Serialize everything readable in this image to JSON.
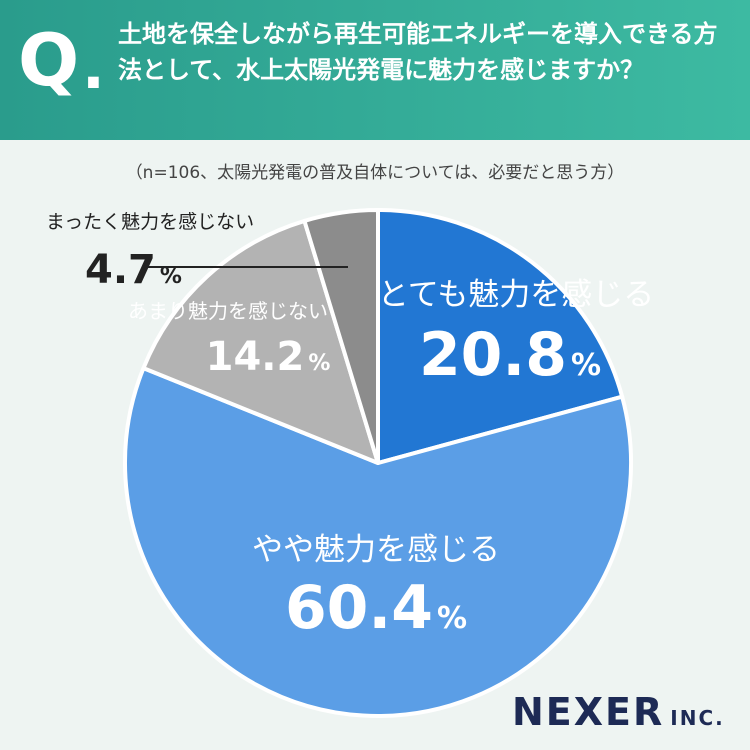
{
  "header": {
    "q_letter": "Q",
    "q_dot": ".",
    "question": "土地を保全しながら再生可能エネルギーを導入できる方法として、水上太陽光発電に魅力を感じますか？"
  },
  "note": "（n=106、太陽光発電の普及自体については、必要だと思う方）",
  "brand": {
    "main": "NEXER",
    "sub": "INC."
  },
  "colors": {
    "header": "#2a9c8c",
    "slice_very": "#2277d3",
    "slice_somewhat": "#5b9ee6",
    "slice_not_much": "#b3b3b3",
    "slice_not_at_all": "#8c8c8c",
    "leader_line": "#222222"
  },
  "chart_data": {
    "type": "pie",
    "slices": [
      {
        "label": "とても魅力を感じる",
        "value": 20.8,
        "value_text": "20.8",
        "color": "#2277d3"
      },
      {
        "label": "やや魅力を感じる",
        "value": 60.4,
        "value_text": "60.4",
        "color": "#5b9ee6"
      },
      {
        "label": "あまり魅力を感じない",
        "value": 14.2,
        "value_text": "14.2",
        "color": "#b3b3b3"
      },
      {
        "label": "まったく魅力を感じない",
        "value": 4.7,
        "value_text": "4.7",
        "color": "#8c8c8c"
      }
    ],
    "unit": "%"
  }
}
